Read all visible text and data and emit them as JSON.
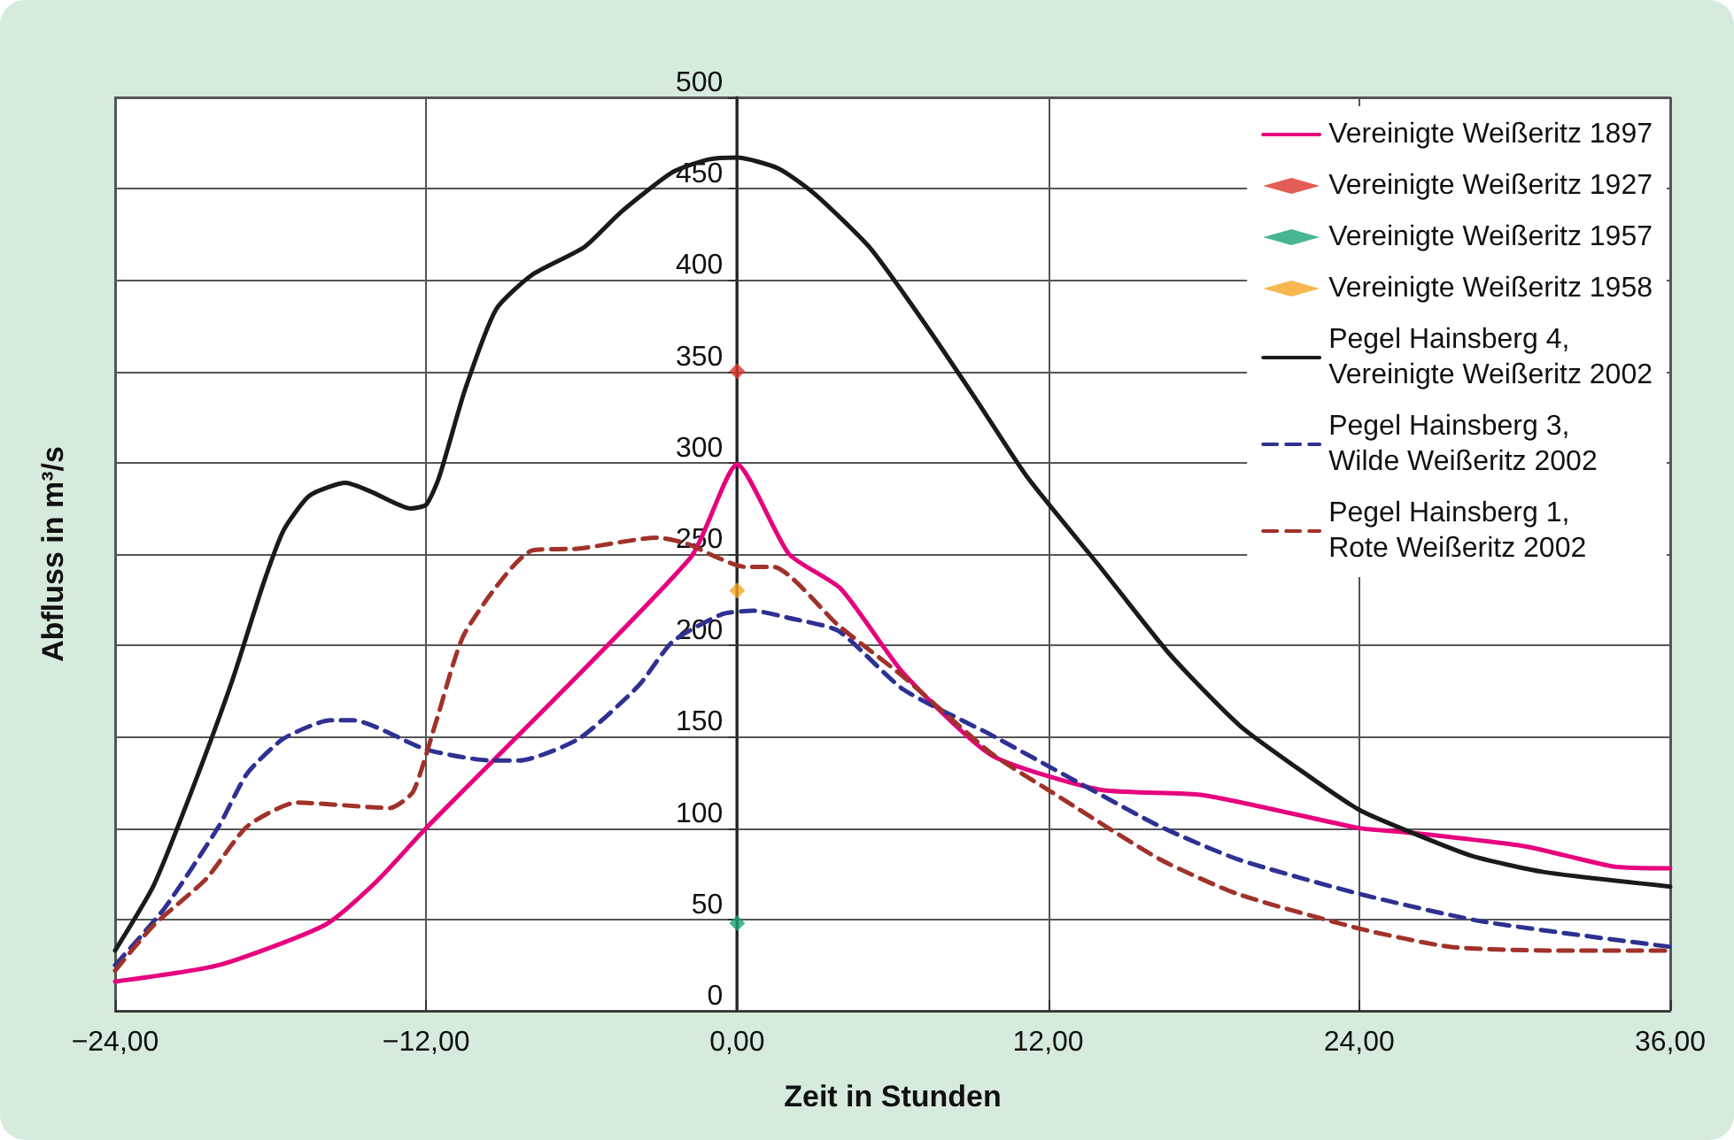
{
  "chart_data": {
    "type": "line",
    "xlabel": "Zeit in Stunden",
    "ylabel": "Abfluss in m³/s",
    "xlim": [
      -24,
      36
    ],
    "xticks": [
      {
        "value": -24,
        "label": "−24,00"
      },
      {
        "value": -12,
        "label": "−12,00"
      },
      {
        "value": 0,
        "label": "0,00"
      },
      {
        "value": 12,
        "label": "12,00"
      },
      {
        "value": 24,
        "label": "24,00"
      },
      {
        "value": 36,
        "label": "36,00"
      }
    ],
    "ylim": [
      0,
      500
    ],
    "yticks": [
      0,
      50,
      100,
      150,
      200,
      250,
      300,
      350,
      400,
      450,
      500
    ],
    "grid": true,
    "legend": "top right",
    "series": [
      {
        "name": "Vereinigte Weißeritz 1897",
        "type": "line",
        "color": "#e6007e",
        "marker": "none",
        "line_style": "solid",
        "x": [
          -24,
          -20,
          -15.9,
          -13.9,
          -12,
          -1.8,
          0,
          2,
          4,
          6.4,
          9.8,
          14,
          18,
          24,
          25.6,
          30.4,
          33.8,
          36
        ],
        "values": [
          16,
          25,
          47,
          71,
          100,
          248,
          299,
          250,
          231,
          185,
          140,
          121,
          118,
          100,
          98,
          90,
          79,
          78
        ]
      },
      {
        "name": "Vereinigte Weißeritz 1927",
        "type": "scatter",
        "color": "#d9342b",
        "marker": "diamond",
        "x": [
          0
        ],
        "values": [
          350
        ]
      },
      {
        "name": "Vereinigte Weißeritz 1957",
        "type": "scatter",
        "color": "#1aa37a",
        "marker": "diamond",
        "x": [
          0
        ],
        "values": [
          48
        ]
      },
      {
        "name": "Vereinigte Weißeritz 1958",
        "type": "scatter",
        "color": "#f5a623",
        "marker": "diamond",
        "x": [
          0
        ],
        "values": [
          230
        ]
      },
      {
        "name": "Pegel Hainsberg 4,\nVereinigte Weißeritz 2002",
        "type": "line",
        "color": "#1a1a1a",
        "marker": "none",
        "line_style": "solid",
        "x": [
          -24,
          -22.5,
          -21,
          -19.5,
          -18.3,
          -17.5,
          -16.5,
          -15.1,
          -14.1,
          -12.6,
          -12,
          -11.5,
          -10.5,
          -9.3,
          -7.9,
          -5.9,
          -4.5,
          -2.5,
          -1.1,
          0,
          1.6,
          3,
          5.1,
          7.1,
          9.2,
          11.2,
          14,
          16.7,
          19.4,
          22.2,
          24,
          25.6,
          28.3,
          31.1,
          36
        ],
        "values": [
          33,
          69,
          122,
          180,
          233,
          263,
          282,
          289,
          284,
          275,
          277,
          292,
          340,
          384,
          403,
          418,
          437,
          459,
          466,
          467,
          461,
          447,
          418,
          379,
          335,
          292,
          243,
          195,
          156,
          127,
          110,
          100,
          85,
          76,
          68
        ]
      },
      {
        "name": "Pegel Hainsberg 3,\nWilde Weißeritz 2002",
        "type": "line",
        "color": "#2e3192",
        "marker": "none",
        "line_style": "dashed",
        "x": [
          -24,
          -22.1,
          -20,
          -18.9,
          -17.5,
          -15.7,
          -14.8,
          -12,
          -9.5,
          -8.4,
          -6.1,
          -3.8,
          -2.5,
          -0.6,
          0.6,
          2,
          3.9,
          6.4,
          9.8,
          12.9,
          16.3,
          19.3,
          24,
          28.7,
          36
        ],
        "values": [
          25,
          56,
          101,
          130,
          149,
          159,
          159,
          143,
          137,
          137,
          149,
          178,
          202,
          217,
          219,
          215,
          208,
          176,
          151,
          127,
          101,
          83,
          64,
          49,
          35
        ]
      },
      {
        "name": "Pegel Hainsberg 1,\nRote Weißeritz 2002",
        "type": "line",
        "color": "#a0322a",
        "marker": "none",
        "line_style": "dashed",
        "x": [
          -24,
          -22.5,
          -20.5,
          -18.9,
          -17,
          -13.4,
          -12.5,
          -11.6,
          -10.5,
          -7.9,
          -6.1,
          -3.1,
          -2,
          0.3,
          1.4,
          3.9,
          6.4,
          9.8,
          12.1,
          16.3,
          19.3,
          24,
          27.5,
          31.3,
          36
        ],
        "values": [
          22,
          47,
          72,
          101,
          114,
          111,
          120,
          159,
          207,
          252,
          253,
          259,
          256,
          243,
          243,
          211,
          183,
          141,
          120,
          83,
          64,
          45,
          35,
          33,
          33
        ]
      }
    ]
  }
}
